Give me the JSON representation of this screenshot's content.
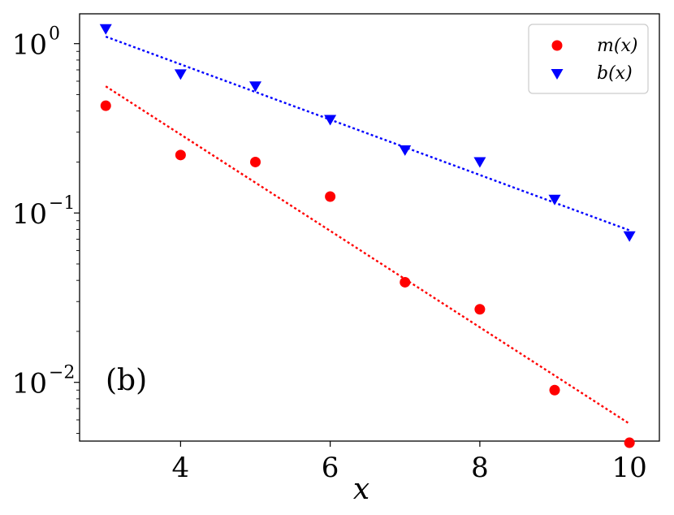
{
  "chart_data": {
    "type": "scatter",
    "xlabel": "x",
    "ylabel": "",
    "yscale": "log",
    "xlim": [
      2.65,
      10.4
    ],
    "ylim": [
      0.0045,
      1.5
    ],
    "x_ticks": [
      4,
      6,
      8,
      10
    ],
    "x_tick_labels": [
      "4",
      "6",
      "8",
      "10"
    ],
    "y_ticks": [
      1,
      0.1,
      0.01
    ],
    "y_tick_labels": [
      {
        "base": "10",
        "exp": "0"
      },
      {
        "base": "10",
        "exp": "−1"
      },
      {
        "base": "10",
        "exp": "−2"
      }
    ],
    "annotation": "(b)",
    "legend": {
      "placement": "top-right"
    },
    "series": [
      {
        "name": "m(x)",
        "marker": "circle",
        "color": "#ff0000",
        "x": [
          3,
          4,
          5,
          6,
          7,
          8,
          9,
          10
        ],
        "y": [
          0.43,
          0.22,
          0.2,
          0.125,
          0.039,
          0.027,
          0.009,
          0.0044
        ],
        "fit": {
          "x": [
            3,
            10
          ],
          "y": [
            0.56,
            0.0057
          ],
          "style": "dotted"
        }
      },
      {
        "name": "b(x)",
        "marker": "triangle-down",
        "color": "#0000ff",
        "x": [
          3,
          4,
          5,
          6,
          7,
          8,
          9,
          10
        ],
        "y": [
          1.22,
          0.66,
          0.56,
          0.355,
          0.235,
          0.2,
          0.12,
          0.073
        ],
        "fit": {
          "x": [
            3,
            10
          ],
          "y": [
            1.1,
            0.079
          ],
          "style": "dotted"
        }
      }
    ]
  }
}
